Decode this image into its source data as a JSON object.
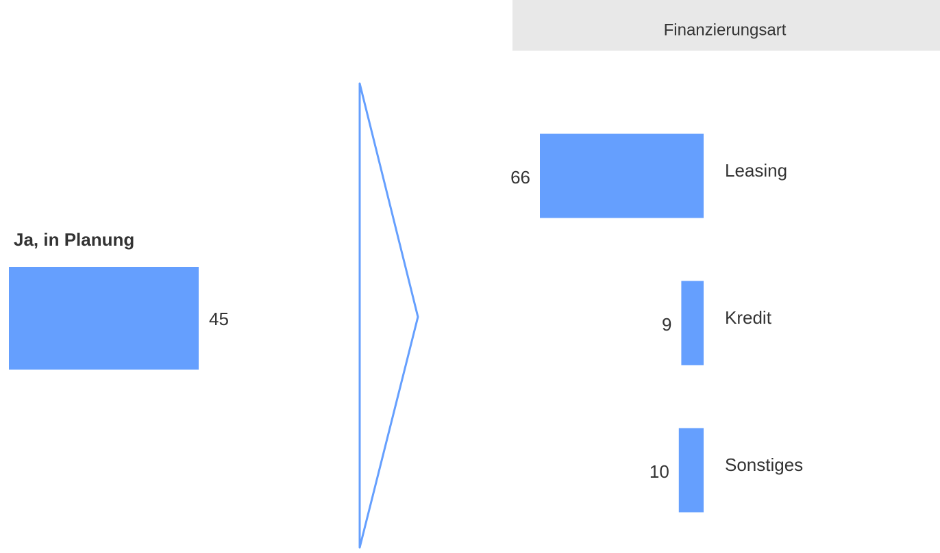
{
  "chart_data": [
    {
      "type": "bar",
      "categories": [
        "Ja, in Planung"
      ],
      "values": [
        45
      ],
      "color": "#659ffe"
    },
    {
      "type": "bar",
      "title": "Finanzierungsart",
      "categories": [
        "Leasing",
        "Kredit",
        "Sonstiges"
      ],
      "values": [
        66,
        9,
        10
      ],
      "color": "#659ffe"
    }
  ]
}
